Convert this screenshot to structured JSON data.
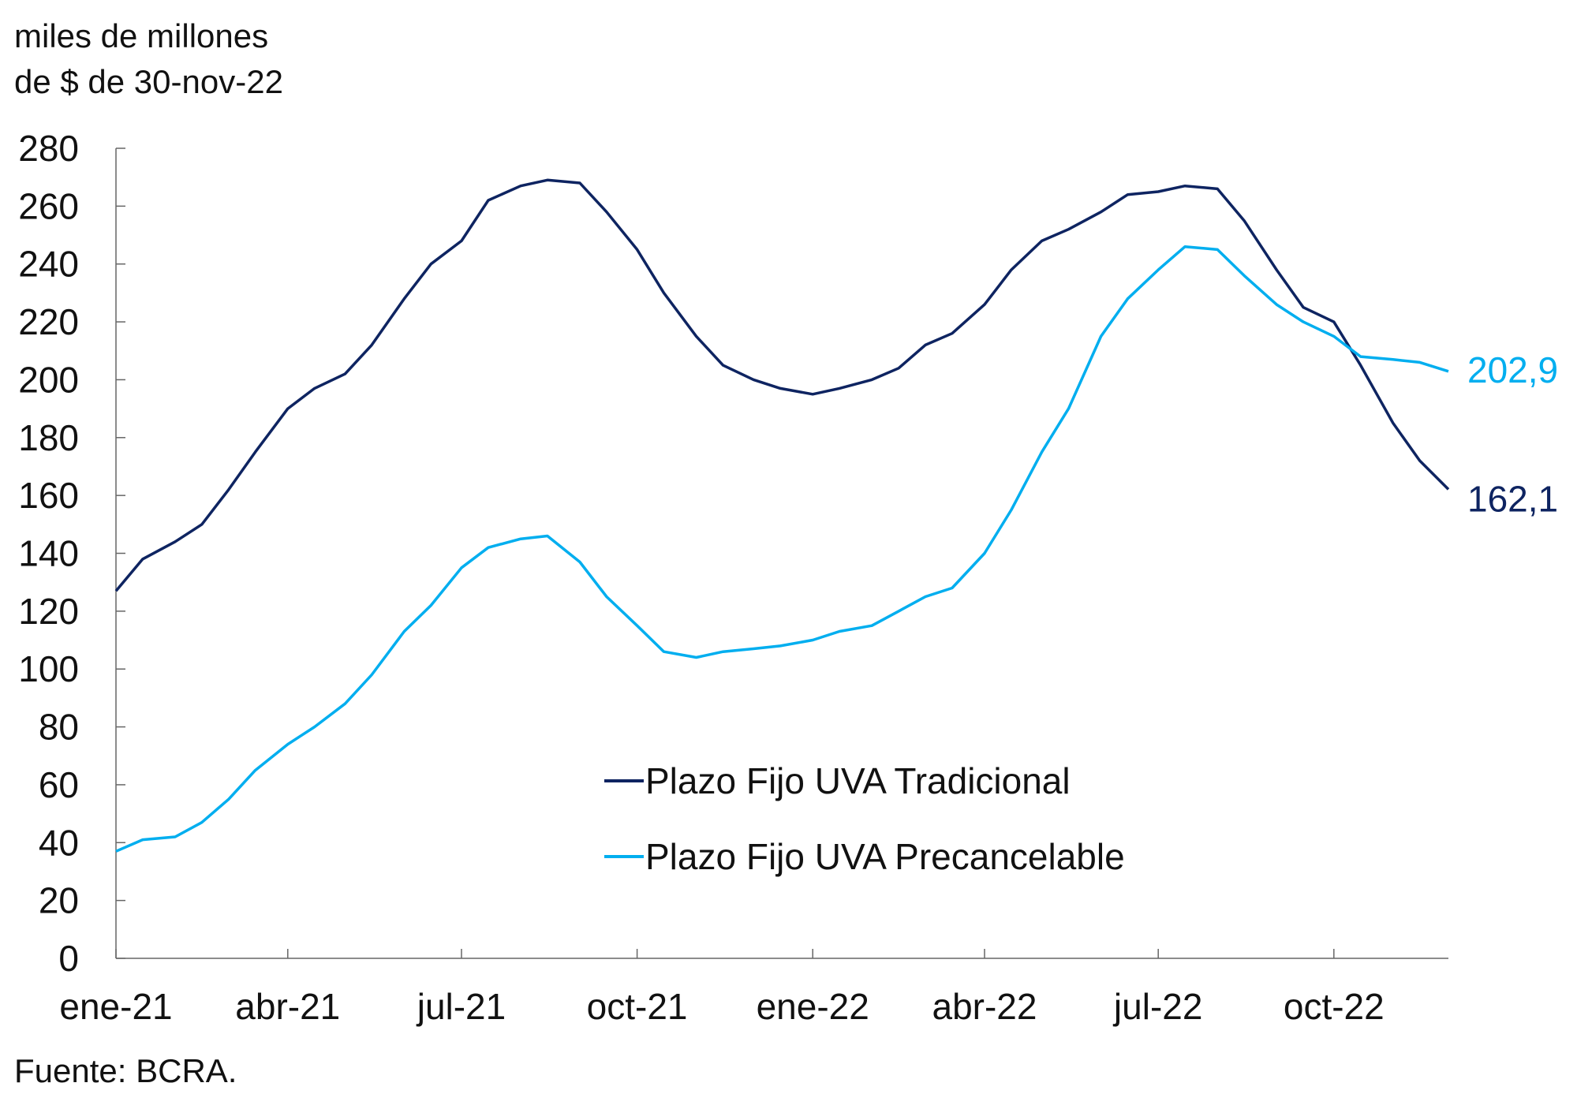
{
  "chart_data": {
    "type": "line",
    "ylabel_lines": [
      "miles de millones",
      "de $ de 30-nov-22"
    ],
    "ylim": [
      0,
      280
    ],
    "yticks": [
      0,
      20,
      40,
      60,
      80,
      100,
      120,
      140,
      160,
      180,
      200,
      220,
      240,
      260,
      280
    ],
    "xlim": [
      "2021-01-01",
      "2022-11-30"
    ],
    "xticks": [
      {
        "date": "2021-01-01",
        "label": "ene-21"
      },
      {
        "date": "2021-04-01",
        "label": "abr-21"
      },
      {
        "date": "2021-07-01",
        "label": "jul-21"
      },
      {
        "date": "2021-10-01",
        "label": "oct-21"
      },
      {
        "date": "2022-01-01",
        "label": "ene-22"
      },
      {
        "date": "2022-04-01",
        "label": "abr-22"
      },
      {
        "date": "2022-07-01",
        "label": "jul-22"
      },
      {
        "date": "2022-10-01",
        "label": "oct-22"
      }
    ],
    "grid": false,
    "legend_position": "bottom-center",
    "x": [
      "2021-01-01",
      "2021-01-15",
      "2021-02-01",
      "2021-02-15",
      "2021-03-01",
      "2021-03-15",
      "2021-04-01",
      "2021-04-15",
      "2021-05-01",
      "2021-05-15",
      "2021-06-01",
      "2021-06-15",
      "2021-07-01",
      "2021-07-15",
      "2021-08-01",
      "2021-08-15",
      "2021-09-01",
      "2021-09-15",
      "2021-10-01",
      "2021-10-15",
      "2021-11-01",
      "2021-11-15",
      "2021-12-01",
      "2021-12-15",
      "2022-01-01",
      "2022-01-15",
      "2022-02-01",
      "2022-02-15",
      "2022-03-01",
      "2022-03-15",
      "2022-04-01",
      "2022-04-15",
      "2022-05-01",
      "2022-05-15",
      "2022-06-01",
      "2022-06-15",
      "2022-07-01",
      "2022-07-15",
      "2022-08-01",
      "2022-08-15",
      "2022-09-01",
      "2022-09-15",
      "2022-10-01",
      "2022-10-15",
      "2022-11-01",
      "2022-11-15",
      "2022-11-30"
    ],
    "series": [
      {
        "name": "Plazo Fijo UVA Tradicional",
        "color": "#0e2461",
        "end_label": "162,1",
        "values": [
          127,
          138,
          144,
          150,
          162,
          175,
          190,
          197,
          202,
          212,
          228,
          240,
          248,
          262,
          267,
          269,
          268,
          258,
          245,
          230,
          215,
          205,
          200,
          197,
          195,
          197,
          200,
          204,
          212,
          216,
          226,
          238,
          248,
          252,
          258,
          264,
          265,
          267,
          266,
          255,
          238,
          225,
          220,
          205,
          185,
          172,
          162.1
        ]
      },
      {
        "name": "Plazo Fijo UVA Precancelable",
        "color": "#00aeef",
        "end_label": "202,9",
        "values": [
          37,
          41,
          42,
          47,
          55,
          65,
          74,
          80,
          88,
          98,
          113,
          122,
          135,
          142,
          145,
          146,
          137,
          125,
          115,
          106,
          104,
          106,
          107,
          108,
          110,
          113,
          115,
          120,
          125,
          128,
          140,
          155,
          175,
          190,
          215,
          228,
          238,
          246,
          245,
          236,
          226,
          220,
          215,
          208,
          207,
          206,
          202.9
        ]
      }
    ],
    "source": "Fuente: BCRA."
  }
}
